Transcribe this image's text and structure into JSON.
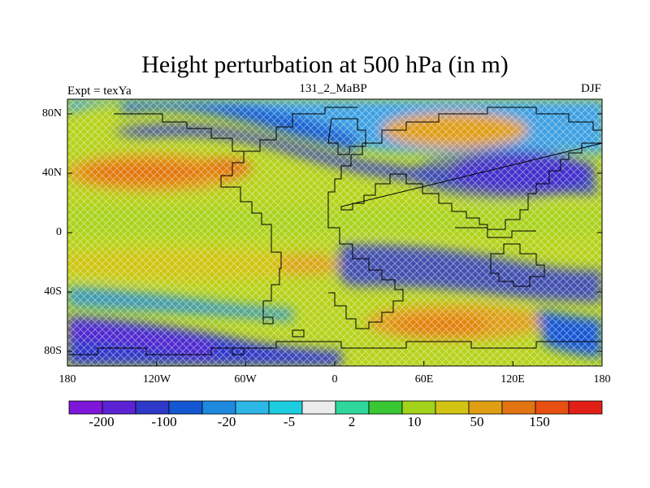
{
  "title": "Height perturbation at 500 hPa (in m)",
  "left_label": "Expt = texYa",
  "center_label": "131_2_MaBP",
  "right_label": "DJF",
  "map": {
    "projection": "cylindrical equidistant",
    "lon_range": [
      -180,
      180
    ],
    "lat_range": [
      -90,
      90
    ],
    "x_ticks": [
      "180",
      "120W",
      "60W",
      "0",
      "60E",
      "120E",
      "180"
    ],
    "y_ticks": [
      "80N",
      "40N",
      "0",
      "40S",
      "80S"
    ],
    "field_pattern": "crosshatched contour fill with continental outlines"
  },
  "colorbar": {
    "colors": [
      "#7d16d8",
      "#5b23d4",
      "#2e39c9",
      "#1457d2",
      "#1d8ae0",
      "#2cb7e6",
      "#1ccde0",
      "#ececec",
      "#2fd79c",
      "#3ac734",
      "#a3d21b",
      "#d3c313",
      "#df9e13",
      "#e27511",
      "#e84f12",
      "#e21f16"
    ],
    "labels": [
      "-200",
      "-100",
      "-20",
      "-5",
      "2",
      "10",
      "50",
      "150"
    ]
  }
}
